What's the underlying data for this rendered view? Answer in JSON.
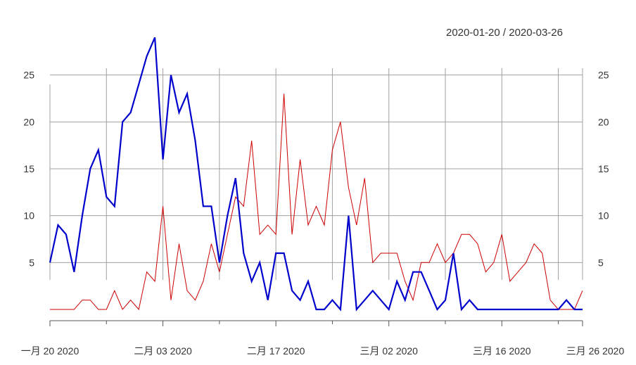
{
  "header": {
    "date_range": "2020-01-20 / 2020-03-26"
  },
  "chart_data": {
    "type": "line",
    "title": "",
    "xlabel": "",
    "ylabel": "",
    "x_start": "2020-01-20",
    "x_end": "2020-03-26",
    "x_ticks": [
      {
        "date": "2020-01-20",
        "label": "一月 20 2020"
      },
      {
        "date": "2020-02-03",
        "label": "二月 03 2020"
      },
      {
        "date": "2020-02-17",
        "label": "二月 17 2020"
      },
      {
        "date": "2020-03-02",
        "label": "三月 02 2020"
      },
      {
        "date": "2020-03-16",
        "label": "三月 16 2020"
      },
      {
        "date": "2020-03-26",
        "label": "三月 26 2020"
      }
    ],
    "minor_ticks": [
      "2020-01-27",
      "2020-02-10",
      "2020-02-24",
      "2020-03-09",
      "2020-03-23"
    ],
    "ylim": [
      -1.2,
      28.5
    ],
    "y_ticks": [
      5,
      10,
      15,
      20,
      25
    ],
    "grid": true,
    "series": [
      {
        "color": "#0000cc",
        "values": [
          5,
          9,
          8,
          4,
          10,
          15,
          17,
          12,
          11,
          20,
          21,
          24,
          27,
          29,
          16,
          25,
          21,
          23,
          18,
          11,
          11,
          5,
          10,
          14,
          6,
          3,
          5,
          1,
          6,
          6,
          2,
          1,
          3,
          0,
          0,
          1,
          0,
          10,
          0,
          1,
          2,
          1,
          0,
          3,
          1,
          4,
          4,
          2,
          0,
          1,
          6,
          0,
          1,
          0,
          0,
          0,
          0,
          0,
          0,
          0,
          0,
          0,
          0,
          0,
          1,
          0,
          0
        ]
      },
      {
        "color": "#cc0000",
        "values": [
          0,
          0,
          0,
          0,
          1,
          1,
          0,
          0,
          2,
          0,
          1,
          0,
          4,
          3,
          11,
          1,
          7,
          2,
          1,
          3,
          7,
          4,
          8,
          12,
          11,
          18,
          8,
          9,
          8,
          23,
          8,
          16,
          9,
          11,
          9,
          17,
          20,
          13,
          9,
          14,
          5,
          6,
          6,
          6,
          3,
          1,
          5,
          5,
          7,
          5,
          6,
          8,
          8,
          7,
          4,
          5,
          8,
          3,
          4,
          5,
          7,
          6,
          1,
          0,
          0,
          0,
          2
        ]
      }
    ]
  }
}
